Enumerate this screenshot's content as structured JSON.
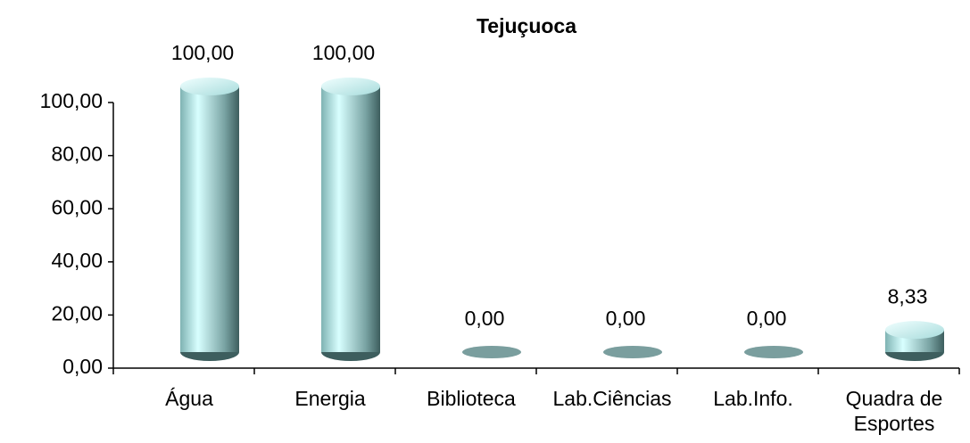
{
  "chart_data": {
    "type": "bar",
    "title": "Tejuçuoca",
    "categories": [
      "Água",
      "Energia",
      "Biblioteca",
      "Lab.Ciências",
      "Lab.Info.",
      "Quadra de Esportes"
    ],
    "values": [
      100,
      100,
      0,
      0,
      0,
      8.33
    ],
    "value_labels": [
      "100,00",
      "100,00",
      "0,00",
      "0,00",
      "0,00",
      "8,33"
    ],
    "color": "#9fdede",
    "ylim": [
      0,
      100
    ],
    "yticks": [
      {
        "value": 0,
        "label": "0,00"
      },
      {
        "value": 20,
        "label": "20,00"
      },
      {
        "value": 40,
        "label": "40,00"
      },
      {
        "value": 60,
        "label": "60,00"
      },
      {
        "value": 80,
        "label": "80,00"
      },
      {
        "value": 100,
        "label": "100,00"
      }
    ],
    "grid": false
  }
}
